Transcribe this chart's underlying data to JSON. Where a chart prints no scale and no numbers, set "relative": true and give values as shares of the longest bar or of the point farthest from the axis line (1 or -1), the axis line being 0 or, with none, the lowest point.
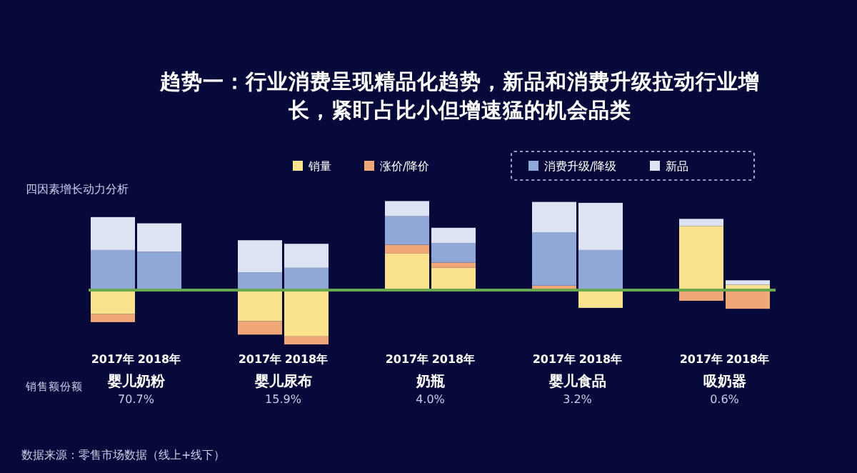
{
  "chart_data": {
    "type": "bar",
    "title": "趋势一：行业消费呈现精品化趋势，新品和消费升级拉动行业增长，紧盯占比小但增速猛的机会品类",
    "ylabel": "四因素增长动力分析",
    "categories": [
      "2017年",
      "2018年",
      "2017年",
      "2018年",
      "2017年",
      "2018年",
      "2017年",
      "2018年",
      "2017年",
      "2018年"
    ],
    "relative": true,
    "stacked": true,
    "legend": "top",
    "ref_lines": [
      {
        "axis": "y",
        "value": 0,
        "color": "#6aa84f"
      }
    ],
    "series": [
      {
        "name": "销量",
        "color": "#fbe38e",
        "values": [
          -0.27,
          0,
          -0.35,
          -0.52,
          0.41,
          0.25,
          0,
          -0.2,
          0.72,
          0.06
        ]
      },
      {
        "name": "涨价/降价",
        "color": "#f0a878",
        "values": [
          -0.09,
          0,
          -0.15,
          -0.09,
          0.1,
          0.06,
          0.05,
          0,
          -0.12,
          -0.21
        ]
      },
      {
        "name": "消费升级/降级",
        "color": "#8fa8d8",
        "values": [
          0.45,
          0.43,
          0.2,
          0.25,
          0.32,
          0.22,
          0.6,
          0.45,
          0,
          0
        ]
      },
      {
        "name": "新品",
        "color": "#dde3f3",
        "values": [
          0.37,
          0.32,
          0.36,
          0.27,
          0.17,
          0.17,
          0.34,
          0.53,
          0.08,
          0.05
        ]
      }
    ],
    "annotations": [
      "销售额份额",
      "婴儿奶粉",
      "70.7%",
      "婴儿尿布",
      "15.9%",
      "奶瓶",
      "4.0%",
      "婴儿食品",
      "3.2%",
      "吸奶器",
      "0.6%",
      "数据来源：零售市场数据（线上+线下）"
    ]
  }
}
